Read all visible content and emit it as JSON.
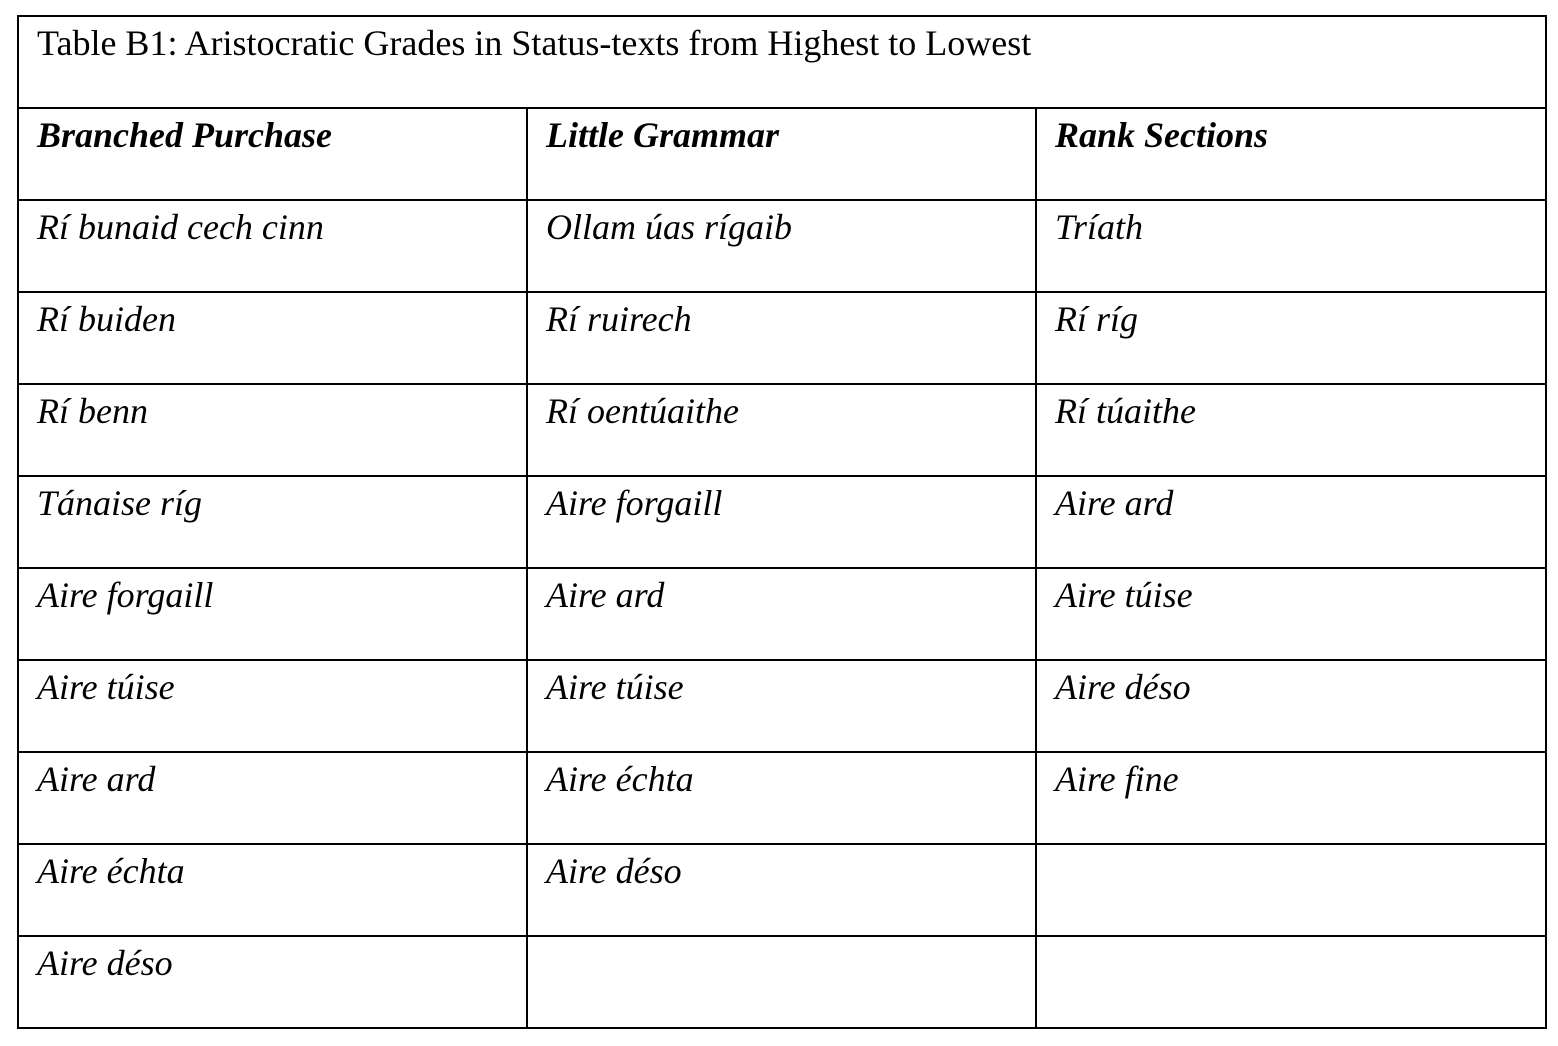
{
  "table": {
    "title": "Table B1: Aristocratic Grades in Status-texts from Highest to Lowest",
    "headers": [
      "Branched Purchase",
      "Little Grammar",
      "Rank Sections"
    ],
    "rows": [
      [
        "Rí bunaid cech cinn",
        "Ollam úas rígaib",
        "Tríath"
      ],
      [
        "Rí buiden",
        "Rí ruirech",
        "Rí ríg"
      ],
      [
        "Rí benn",
        "Rí oentúaithe",
        "Rí túaithe"
      ],
      [
        "Tánaise ríg",
        "Aire forgaill",
        "Aire ard"
      ],
      [
        "Aire forgaill",
        "Aire ard",
        "Aire túise"
      ],
      [
        "Aire túise",
        "Aire túise",
        "Aire déso"
      ],
      [
        "Aire ard",
        "Aire échta",
        "Aire fine"
      ],
      [
        "Aire échta",
        "Aire déso"
      ],
      [
        "Aire déso"
      ]
    ]
  }
}
